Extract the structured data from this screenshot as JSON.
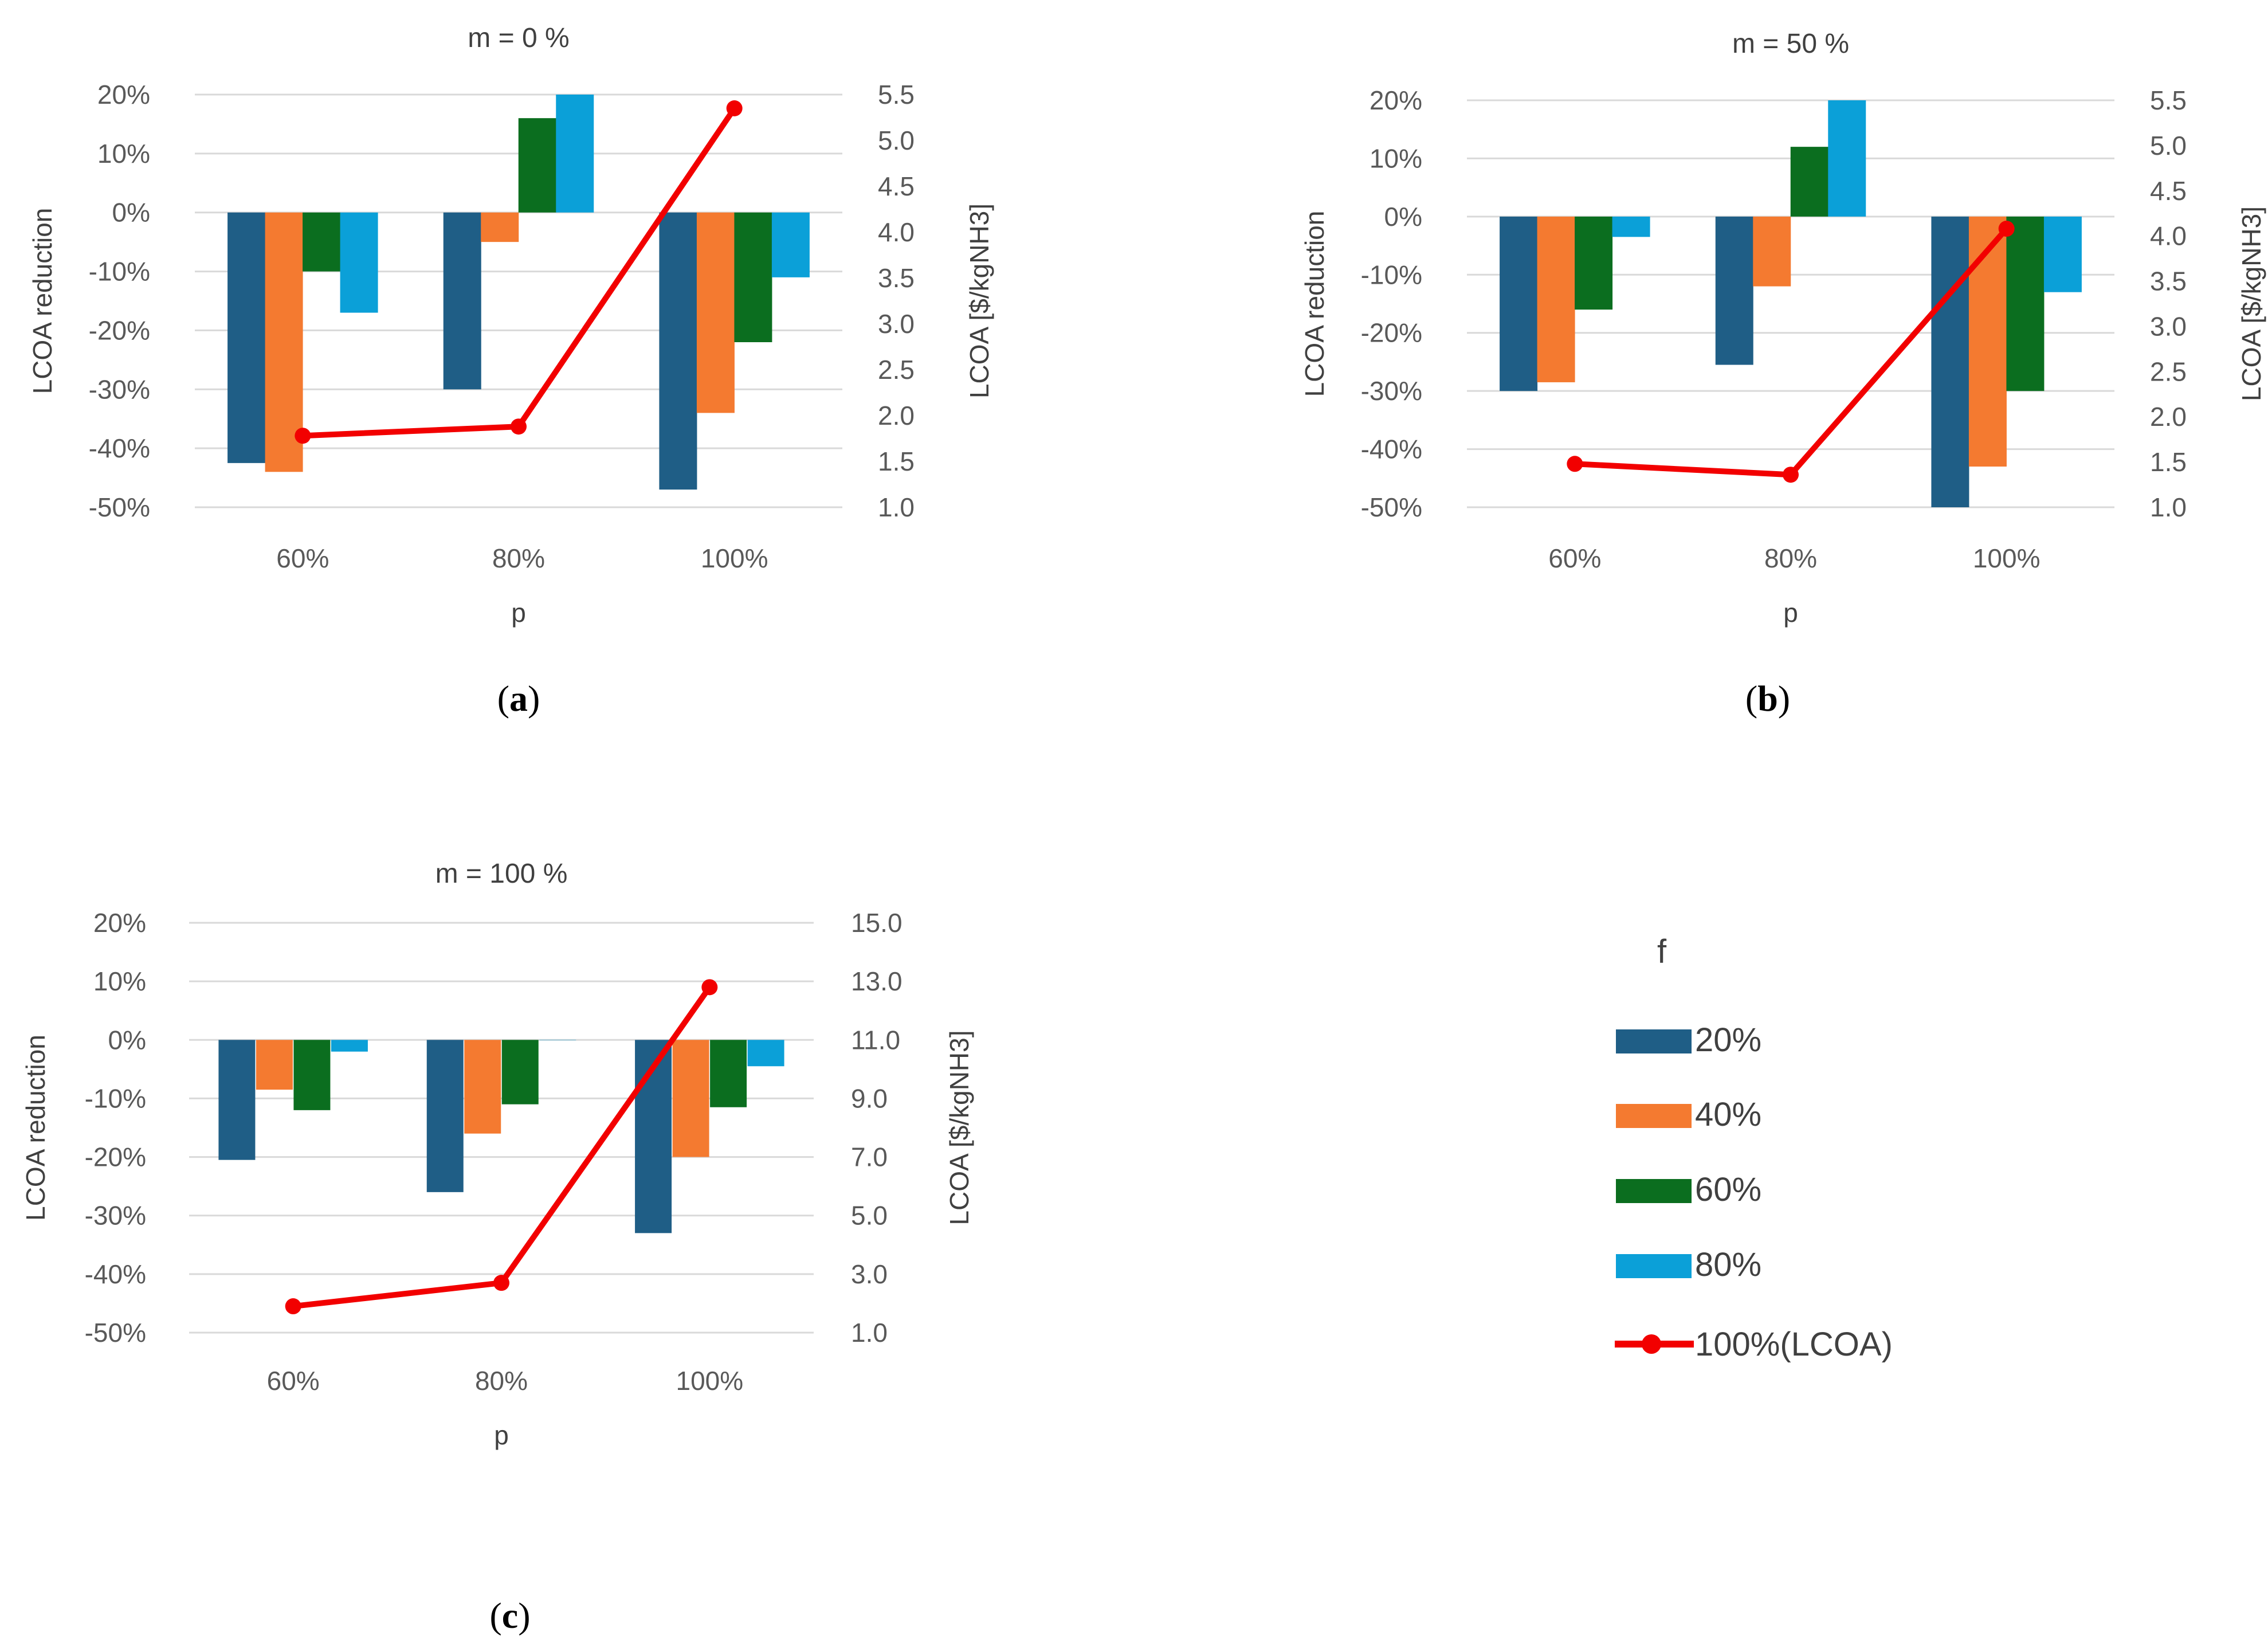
{
  "colors": {
    "series": [
      "#1F5E86",
      "#F47A30",
      "#0B6E1F",
      "#0BA0D8"
    ],
    "line": "#F20000",
    "grid": "#D9D9D9",
    "text": "#404040"
  },
  "legend": {
    "title": "f",
    "items": [
      "20%",
      "40%",
      "60%",
      "80%",
      "100%(LCOA)"
    ]
  },
  "chart_data": [
    {
      "type": "bar",
      "title": "m = 0 %",
      "caption_prefix": "(",
      "caption_letter": "a",
      "caption_suffix": ")",
      "xlabel": "p",
      "ylabel": "LCOA reduction",
      "y2label": "LCOA [$/kgNH3]",
      "categories": [
        "60%",
        "80%",
        "100%"
      ],
      "ylim": [
        -0.5,
        0.2
      ],
      "y_ticks": [
        -0.5,
        -0.4,
        -0.3,
        -0.2,
        -0.1,
        0.0,
        0.1,
        0.2
      ],
      "y_tick_labels": [
        "-50%",
        "-40%",
        "-30%",
        "-20%",
        "-10%",
        "0%",
        "10%",
        "20%"
      ],
      "y2lim": [
        1.0,
        5.5
      ],
      "y2_ticks": [
        1.0,
        1.5,
        2.0,
        2.5,
        3.0,
        3.5,
        4.0,
        4.5,
        5.0,
        5.5
      ],
      "y2_tick_labels": [
        "1.0",
        "1.5",
        "2.0",
        "2.5",
        "3.0",
        "3.5",
        "4.0",
        "4.5",
        "5.0",
        "5.5"
      ],
      "series": [
        {
          "name": "20%",
          "values": [
            -0.425,
            -0.3,
            -0.47
          ]
        },
        {
          "name": "40%",
          "values": [
            -0.44,
            -0.05,
            -0.34
          ]
        },
        {
          "name": "60%",
          "values": [
            -0.1,
            0.16,
            -0.22
          ]
        },
        {
          "name": "80%",
          "values": [
            -0.17,
            0.2,
            -0.11
          ]
        }
      ],
      "line_series": {
        "name": "100%(LCOA)",
        "values": [
          1.78,
          1.88,
          5.35
        ]
      }
    },
    {
      "type": "bar",
      "title": "m = 50 %",
      "caption_prefix": "(",
      "caption_letter": "b",
      "caption_suffix": ")",
      "xlabel": "p",
      "ylabel": "LCOA reduction",
      "y2label": "LCOA [$/kgNH3]",
      "categories": [
        "60%",
        "80%",
        "100%"
      ],
      "ylim": [
        -0.5,
        0.2
      ],
      "y_ticks": [
        -0.5,
        -0.4,
        -0.3,
        -0.2,
        -0.1,
        0.0,
        0.1,
        0.2
      ],
      "y_tick_labels": [
        "-50%",
        "-40%",
        "-30%",
        "-20%",
        "-10%",
        "0%",
        "10%",
        "20%"
      ],
      "y2lim": [
        1.0,
        5.5
      ],
      "y2_ticks": [
        1.0,
        1.5,
        2.0,
        2.5,
        3.0,
        3.5,
        4.0,
        4.5,
        5.0,
        5.5
      ],
      "y2_tick_labels": [
        "1.0",
        "1.5",
        "2.0",
        "2.5",
        "3.0",
        "3.5",
        "4.0",
        "4.5",
        "5.0",
        "5.5"
      ],
      "series": [
        {
          "name": "20%",
          "values": [
            -0.3,
            -0.255,
            -0.5
          ]
        },
        {
          "name": "40%",
          "values": [
            -0.285,
            -0.12,
            -0.43
          ]
        },
        {
          "name": "60%",
          "values": [
            -0.16,
            0.12,
            -0.3
          ]
        },
        {
          "name": "80%",
          "values": [
            -0.035,
            0.2,
            -0.13
          ]
        }
      ],
      "line_series": {
        "name": "100%(LCOA)",
        "values": [
          1.48,
          1.36,
          4.08
        ]
      }
    },
    {
      "type": "bar",
      "title": "m = 100 %",
      "caption_prefix": "(",
      "caption_letter": "c",
      "caption_suffix": ")",
      "xlabel": "p",
      "ylabel": "LCOA reduction",
      "y2label": "LCOA [$/kgNH3]",
      "categories": [
        "60%",
        "80%",
        "100%"
      ],
      "ylim": [
        -0.5,
        0.2
      ],
      "y_ticks": [
        -0.5,
        -0.4,
        -0.3,
        -0.2,
        -0.1,
        0.0,
        0.1,
        0.2
      ],
      "y_tick_labels": [
        "-50%",
        "-40%",
        "-30%",
        "-20%",
        "-10%",
        "0%",
        "10%",
        "20%"
      ],
      "y2lim": [
        1.0,
        15.0
      ],
      "y2_ticks": [
        1.0,
        3.0,
        5.0,
        7.0,
        9.0,
        11.0,
        13.0,
        15.0
      ],
      "y2_tick_labels": [
        "1.0",
        "3.0",
        "5.0",
        "7.0",
        "9.0",
        "11.0",
        "13.0",
        "15.0"
      ],
      "series": [
        {
          "name": "20%",
          "values": [
            -0.205,
            -0.26,
            -0.33
          ]
        },
        {
          "name": "40%",
          "values": [
            -0.085,
            -0.16,
            -0.2
          ]
        },
        {
          "name": "60%",
          "values": [
            -0.12,
            -0.11,
            -0.115
          ]
        },
        {
          "name": "80%",
          "values": [
            -0.02,
            0.0,
            -0.045
          ]
        }
      ],
      "line_series": {
        "name": "100%(LCOA)",
        "values": [
          1.9,
          2.7,
          12.8
        ]
      }
    }
  ]
}
